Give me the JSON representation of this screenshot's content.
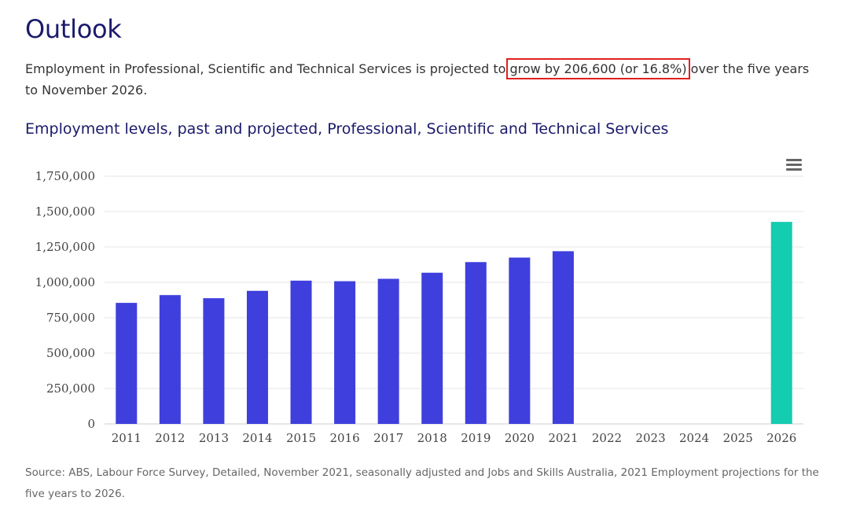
{
  "page": {
    "heading": "Outlook",
    "intro_before": "Employment in Professional, Scientific and Technical Services is projected to ",
    "intro_highlight": "grow by 206,600 (or 16.8%)",
    "intro_after": " over the five years to November 2026.",
    "chart_title": "Employment levels, past and projected, Professional, Scientific and Technical Services",
    "source": "Source: ABS, Labour Force Survey, Detailed, November 2021, seasonally adjusted and Jobs and Skills Australia, 2021 Employment projections for the five years to 2026.",
    "menu_icon": "hamburger-menu-icon",
    "highlight_color": "#e02020"
  },
  "chart_data": {
    "type": "bar",
    "title": "Employment levels, past and projected, Professional, Scientific and Technical Services",
    "xlabel": "",
    "ylabel": "",
    "categories": [
      "2011",
      "2012",
      "2013",
      "2014",
      "2015",
      "2016",
      "2017",
      "2018",
      "2019",
      "2020",
      "2021",
      "2022",
      "2023",
      "2024",
      "2025",
      "2026"
    ],
    "series": [
      {
        "color": "#3f3fdd",
        "values": [
          855000,
          910000,
          888000,
          940000,
          1012000,
          1008000,
          1025000,
          1068000,
          1143000,
          1175000,
          1220000,
          null,
          null,
          null,
          null,
          null
        ]
      },
      {
        "color": "#14ccb0",
        "values": [
          null,
          null,
          null,
          null,
          null,
          null,
          null,
          null,
          null,
          null,
          null,
          null,
          null,
          null,
          null,
          1427000
        ]
      }
    ],
    "ylim": [
      0,
      1750000
    ],
    "yticks": [
      0,
      250000,
      500000,
      750000,
      1000000,
      1250000,
      1500000,
      1750000
    ],
    "ytick_labels": [
      "0",
      "250,000",
      "500,000",
      "750,000",
      "1,000,000",
      "1,250,000",
      "1,500,000",
      "1,750,000"
    ],
    "grid": true
  }
}
